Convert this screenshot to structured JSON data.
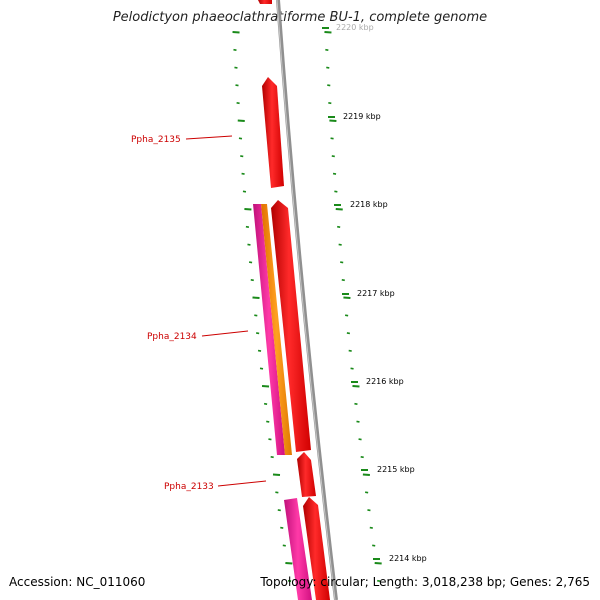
{
  "title": "Pelodictyon phaeoclathratiforme BU-1, complete genome",
  "footer": {
    "accession": "Accession: NC_011060",
    "summary": "Topology: circular; Length: 3,018,238 bp; Genes: 2,765"
  },
  "ticks": {
    "labels": [
      "2220 kbp",
      "2219 kbp",
      "2218 kbp",
      "2217 kbp",
      "2216 kbp",
      "2215 kbp",
      "2214 kbp"
    ],
    "color": "#1a8a1a",
    "label_color": "#000000"
  },
  "genes": {
    "labels": [
      "Ppha_2135",
      "Ppha_2134",
      "Ppha_2133"
    ],
    "label_color": "#cc0000"
  },
  "colors": {
    "backbone": "#808080",
    "cds": "#ff0000",
    "gene_pink": "#ff1493",
    "gene_orange": "#ff8c00"
  }
}
